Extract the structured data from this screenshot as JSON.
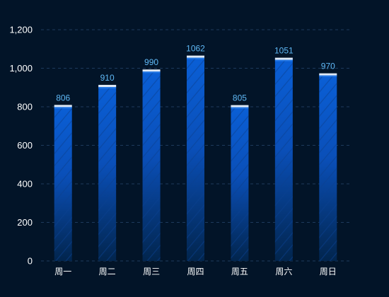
{
  "chart_data": {
    "type": "bar",
    "categories": [
      "周一",
      "周二",
      "周三",
      "周四",
      "周五",
      "周六",
      "周日"
    ],
    "values": [
      806,
      910,
      990,
      1062,
      805,
      1051,
      970
    ],
    "ylim": [
      0,
      1200
    ],
    "yticks": [
      0,
      200,
      400,
      600,
      800,
      1000,
      1200
    ],
    "ytick_labels": [
      "0",
      "200",
      "400",
      "600",
      "800",
      "1,000",
      "1,200"
    ],
    "data_labels": [
      "806",
      "910",
      "990",
      "1062",
      "805",
      "1051",
      "970"
    ],
    "grid": "horizontal dashed",
    "legend": "none",
    "title": "",
    "xlabel": "",
    "ylabel": ""
  },
  "colors": {
    "background": "#021428",
    "grid": "#1d3a5c",
    "bar_top": "#0a5fd6",
    "bar_bottom": "#02254d",
    "bar_hatch": "#0a3f8f",
    "bar_cap": "#dfe9f5",
    "bar_cap_shadow": "#2b7ee8",
    "axis_text": "#ffffff",
    "data_label": "#5fb8f5"
  }
}
